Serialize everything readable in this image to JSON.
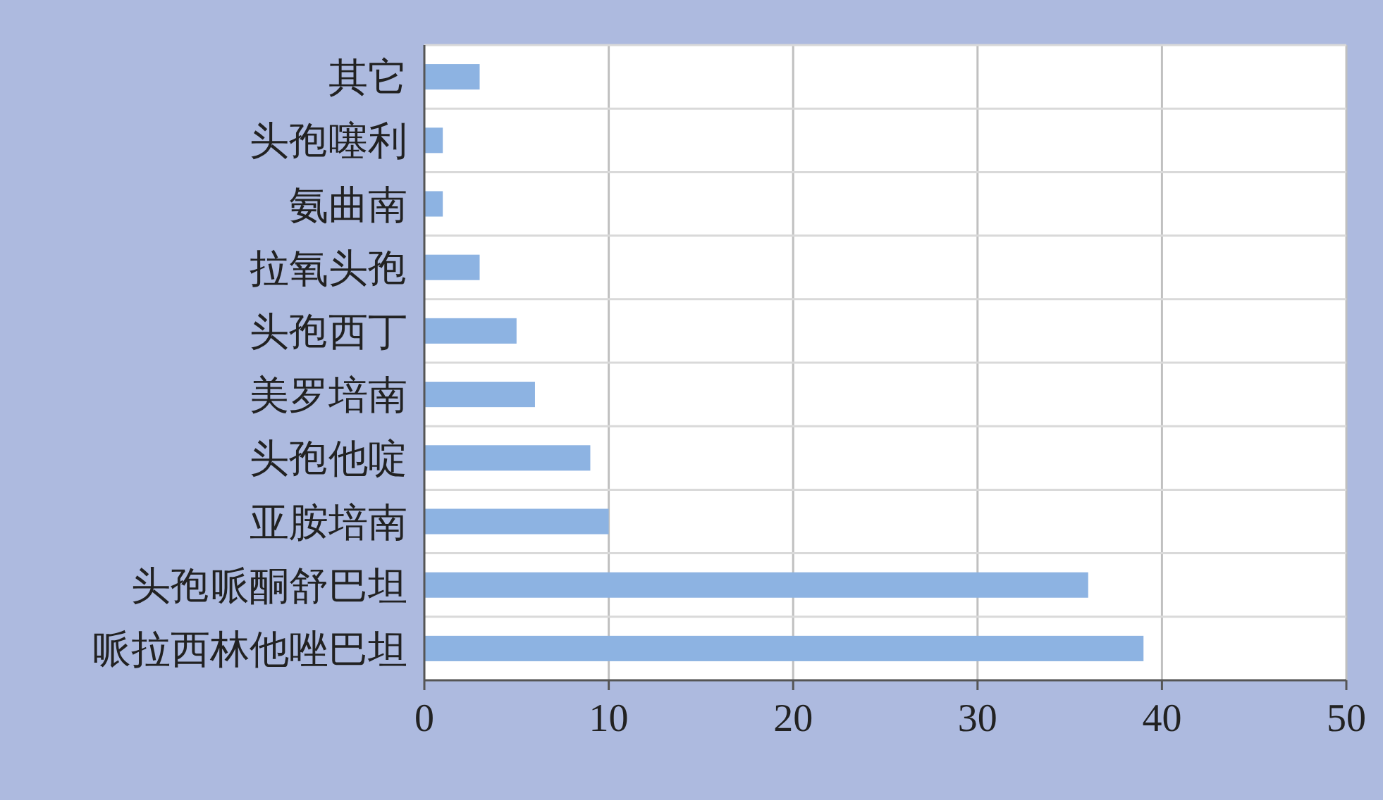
{
  "chart_data": {
    "type": "bar",
    "orientation": "horizontal",
    "categories": [
      "其它",
      "头孢噻利",
      "氨曲南",
      "拉氧头孢",
      "头孢西丁",
      "美罗培南",
      "头孢他啶",
      "亚胺培南",
      "头孢哌酮舒巴坦",
      "哌拉西林他唑巴坦"
    ],
    "values": [
      3,
      1,
      1,
      3,
      5,
      6,
      9,
      10,
      36,
      39
    ],
    "color": "#8db3e2",
    "xlim": [
      0,
      50
    ],
    "xticks": [
      0,
      10,
      20,
      30,
      40,
      50
    ],
    "grid": true
  }
}
